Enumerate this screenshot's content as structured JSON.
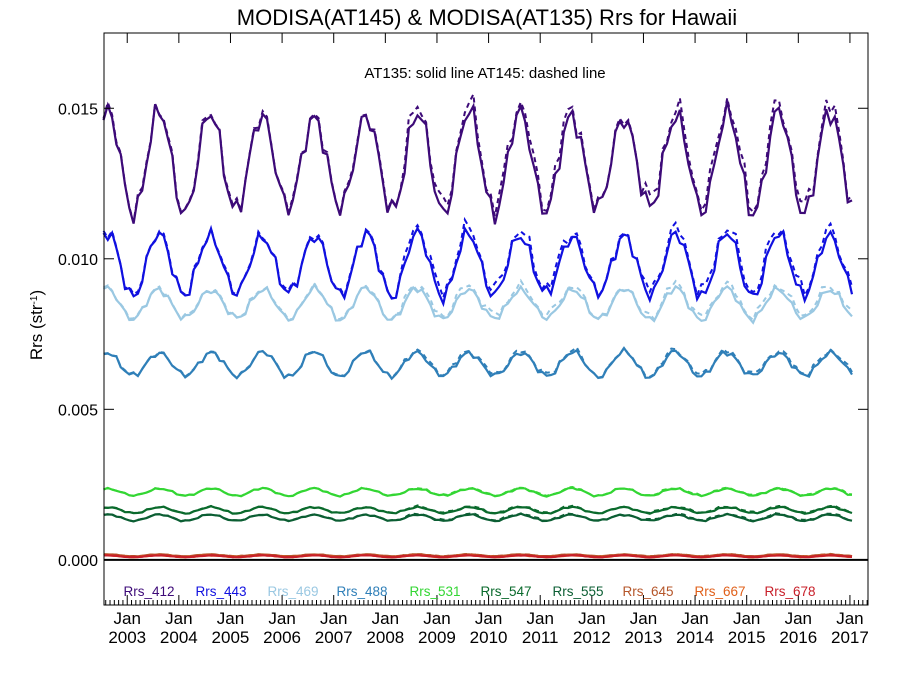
{
  "chart_data": {
    "type": "line",
    "title": "MODISA(AT145) & MODISA(AT135)  Rrs for Hawaii",
    "annotation": "AT135: solid line   AT145: dashed line",
    "ylabel_main": "Rrs (str",
    "ylabel_sup": "-1",
    "ylabel_close": ")",
    "xlim": [
      2002.55,
      2017.35
    ],
    "ylim": [
      -0.0015,
      0.0175
    ],
    "yticks": [
      {
        "value": 0.0,
        "label": "0.000"
      },
      {
        "value": 0.005,
        "label": "0.005"
      },
      {
        "value": 0.01,
        "label": "0.010"
      },
      {
        "value": 0.015,
        "label": "0.015"
      }
    ],
    "xticks": [
      {
        "value": 2003,
        "month": "Jan",
        "year": "2003"
      },
      {
        "value": 2004,
        "month": "Jan",
        "year": "2004"
      },
      {
        "value": 2005,
        "month": "Jan",
        "year": "2005"
      },
      {
        "value": 2006,
        "month": "Jan",
        "year": "2006"
      },
      {
        "value": 2007,
        "month": "Jan",
        "year": "2007"
      },
      {
        "value": 2008,
        "month": "Jan",
        "year": "2008"
      },
      {
        "value": 2009,
        "month": "Jan",
        "year": "2009"
      },
      {
        "value": 2010,
        "month": "Jan",
        "year": "2010"
      },
      {
        "value": 2011,
        "month": "Jan",
        "year": "2011"
      },
      {
        "value": 2012,
        "month": "Jan",
        "year": "2012"
      },
      {
        "value": 2013,
        "month": "Jan",
        "year": "2013"
      },
      {
        "value": 2014,
        "month": "Jan",
        "year": "2014"
      },
      {
        "value": 2015,
        "month": "Jan",
        "year": "2015"
      },
      {
        "value": 2016,
        "month": "Jan",
        "year": "2016"
      },
      {
        "value": 2017,
        "month": "Jan",
        "year": "2017"
      }
    ],
    "start_year": 2002.54,
    "series": [
      {
        "name": "Rrs_412",
        "color": "#3d0a78",
        "mean": 0.0132,
        "amp": 0.0016,
        "dash_diff": 0.0004
      },
      {
        "name": "Rrs_443",
        "color": "#1010e0",
        "mean": 0.0098,
        "amp": 0.001,
        "dash_diff": 0.0003
      },
      {
        "name": "Rrs_469",
        "color": "#9ac8e2",
        "mean": 0.0085,
        "amp": 0.0005,
        "dash_diff": 0.0002
      },
      {
        "name": "Rrs_488",
        "color": "#2f7fb8",
        "mean": 0.0065,
        "amp": 0.0004,
        "dash_diff": 0.0001
      },
      {
        "name": "Rrs_531",
        "color": "#33d633",
        "mean": 0.00225,
        "amp": 0.00012,
        "dash_diff": 3e-05
      },
      {
        "name": "Rrs_547",
        "color": "#0a6a2c",
        "mean": 0.00165,
        "amp": 0.0001,
        "dash_diff": 4e-05
      },
      {
        "name": "Rrs_555",
        "color": "#0b5e33",
        "mean": 0.0014,
        "amp": 0.0001,
        "dash_diff": 4e-05
      },
      {
        "name": "Rrs_645",
        "color": "#b5562a",
        "mean": 0.00015,
        "amp": 3e-05,
        "dash_diff": 1e-05
      },
      {
        "name": "Rrs_667",
        "color": "#e0601a",
        "mean": 0.00012,
        "amp": 3e-05,
        "dash_diff": 1e-05
      },
      {
        "name": "Rrs_678",
        "color": "#c8202a",
        "mean": 0.00012,
        "amp": 3e-05,
        "dash_diff": 1e-05
      }
    ]
  }
}
